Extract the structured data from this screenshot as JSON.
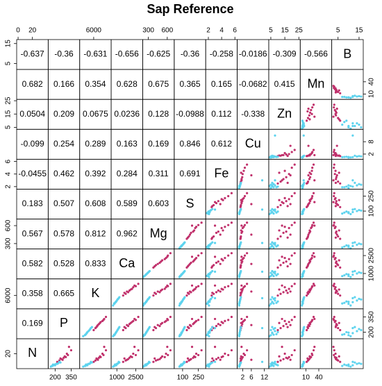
{
  "chart_data": {
    "type": "pairs",
    "title": "Sap Reference",
    "variables": [
      {
        "name": "N",
        "lim": [
          -2,
          42
        ],
        "xticks": [
          0,
          20
        ],
        "yticks": [
          20
        ]
      },
      {
        "name": "P",
        "lim": [
          135,
          430
        ],
        "xticks": [
          200,
          350
        ],
        "yticks": [
          200,
          350
        ]
      },
      {
        "name": "K",
        "lim": [
          2000,
          11000
        ],
        "xticks": [
          6000
        ],
        "yticks": [
          6000
        ]
      },
      {
        "name": "Ca",
        "lim": [
          550,
          3050
        ],
        "xticks": [
          1000,
          2500
        ],
        "yticks": [
          1000,
          2500
        ]
      },
      {
        "name": "Mg",
        "lim": [
          210,
          710
        ],
        "xticks": [
          300,
          600
        ],
        "yticks": [
          300,
          600
        ]
      },
      {
        "name": "S",
        "lim": [
          20,
          320
        ],
        "xticks": [
          100,
          250
        ],
        "yticks": [
          100,
          250
        ]
      },
      {
        "name": "Fe",
        "lim": [
          1.6,
          6.35
        ],
        "xticks": [
          2,
          4,
          6
        ],
        "yticks": [
          2,
          4,
          6
        ]
      },
      {
        "name": "Cu",
        "lim": [
          -0.5,
          14
        ],
        "xticks": [
          2,
          6,
          12
        ],
        "yticks": [
          2,
          8
        ]
      },
      {
        "name": "Zn",
        "lim": [
          3.5,
          26
        ],
        "xticks": [
          5,
          15,
          25
        ],
        "yticks": [
          5,
          15,
          25
        ]
      },
      {
        "name": "Mn",
        "lim": [
          -3,
          70
        ],
        "xticks": [
          10,
          40
        ],
        "yticks": [
          10,
          40
        ]
      },
      {
        "name": "B",
        "lim": [
          2,
          17
        ],
        "xticks": [
          5,
          15
        ],
        "yticks": [
          5,
          15
        ]
      }
    ],
    "correlations": [
      [
        0.169
      ],
      [
        0.358,
        0.665
      ],
      [
        0.582,
        0.528,
        0.833
      ],
      [
        0.567,
        0.578,
        0.812,
        0.962
      ],
      [
        0.183,
        0.507,
        0.608,
        0.589,
        0.603
      ],
      [
        -0.0455,
        0.462,
        0.392,
        0.284,
        0.311,
        0.691
      ],
      [
        -0.099,
        0.254,
        0.289,
        0.163,
        0.169,
        0.846,
        0.612
      ],
      [
        0.0504,
        0.209,
        0.0675,
        0.0236,
        0.128,
        -0.0988,
        0.112,
        -0.338
      ],
      [
        0.682,
        0.166,
        0.354,
        0.628,
        0.675,
        0.365,
        0.165,
        -0.0682,
        0.415
      ],
      [
        -0.637,
        -0.36,
        -0.631,
        -0.656,
        -0.625,
        -0.36,
        -0.258,
        -0.0186,
        -0.309,
        -0.566
      ]
    ],
    "groups": [
      {
        "color": "#c0306b",
        "observations": [
          [
            12,
            260,
            7000,
            1900,
            480,
            180,
            3.2,
            1.5,
            14,
            18,
            4
          ],
          [
            15,
            300,
            8000,
            2200,
            560,
            220,
            4.0,
            2.0,
            18,
            22,
            3.5
          ],
          [
            10,
            240,
            6500,
            1700,
            420,
            160,
            2.8,
            1.2,
            12,
            15,
            5
          ],
          [
            18,
            320,
            8800,
            2500,
            610,
            250,
            5.0,
            3.0,
            20,
            25,
            3
          ],
          [
            25,
            350,
            9500,
            2700,
            650,
            280,
            5.5,
            4.0,
            22,
            28,
            3.2
          ],
          [
            8,
            220,
            6000,
            1500,
            380,
            140,
            2.5,
            1.0,
            10,
            12,
            6
          ],
          [
            14,
            280,
            7500,
            2000,
            500,
            200,
            3.5,
            1.8,
            16,
            20,
            4.2
          ],
          [
            20,
            310,
            8500,
            2300,
            580,
            230,
            4.5,
            2.5,
            15,
            24,
            3.8
          ],
          [
            30,
            330,
            9000,
            2400,
            600,
            190,
            3.0,
            1.5,
            13,
            30,
            2.8
          ],
          [
            11,
            270,
            7200,
            1800,
            450,
            170,
            3.8,
            6.0,
            19,
            16,
            4.5
          ],
          [
            16,
            290,
            7800,
            2100,
            520,
            210,
            4.2,
            1.3,
            11,
            19,
            5.5
          ],
          [
            13,
            250,
            6800,
            1600,
            400,
            150,
            2.6,
            1.1,
            17,
            14,
            3.9
          ]
        ]
      },
      {
        "color": "#5dd3ee",
        "observations": [
          [
            3,
            190,
            4000,
            900,
            260,
            90,
            2.0,
            0.5,
            6,
            3,
            12
          ],
          [
            5,
            210,
            4500,
            1000,
            280,
            100,
            2.2,
            0.8,
            8,
            4,
            14
          ],
          [
            2,
            170,
            3500,
            800,
            240,
            80,
            1.8,
            0.3,
            5,
            2,
            10
          ],
          [
            6,
            230,
            5000,
            1100,
            300,
            110,
            2.4,
            1.0,
            7,
            5,
            15
          ],
          [
            4,
            180,
            3800,
            850,
            250,
            85,
            1.9,
            0.6,
            9,
            3,
            8
          ],
          [
            1,
            160,
            3000,
            700,
            220,
            70,
            2.1,
            0.4,
            4,
            1,
            11
          ],
          [
            7,
            250,
            5500,
            1200,
            320,
            120,
            2.6,
            1.2,
            6,
            6,
            13
          ],
          [
            3,
            200,
            4200,
            950,
            270,
            95,
            2.0,
            0.7,
            10,
            2,
            9
          ],
          [
            5,
            220,
            4800,
            1050,
            290,
            105,
            2.3,
            0.9,
            5,
            4,
            16
          ],
          [
            2,
            175,
            3600,
            780,
            235,
            75,
            1.9,
            0.5,
            7,
            3,
            7
          ],
          [
            8,
            240,
            5200,
            1150,
            310,
            115,
            3.0,
            11,
            8,
            5,
            12
          ],
          [
            4,
            195,
            4100,
            920,
            265,
            88,
            2.2,
            0.6,
            6,
            2,
            10
          ]
        ]
      }
    ]
  }
}
